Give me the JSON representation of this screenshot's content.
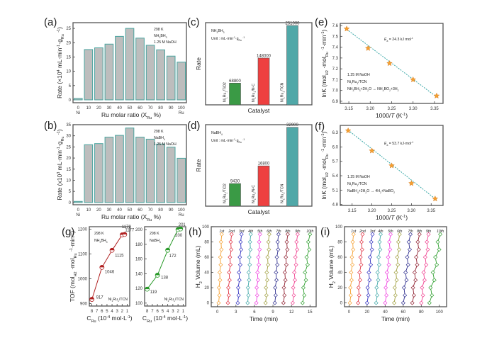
{
  "figure": {
    "panel_labels": [
      "(a)",
      "(b)",
      "(c)",
      "(d)",
      "(e)",
      "(f)",
      "(g)",
      "(h)",
      "(i)"
    ]
  },
  "chart_data": [
    {
      "id": "a",
      "type": "bar",
      "panel_label": "(a)",
      "title": "",
      "categories": [
        "0",
        "10",
        "20",
        "30",
        "40",
        "50",
        "60",
        "70",
        "80",
        "90",
        "100"
      ],
      "category_sublabels": {
        "0": "Ni",
        "100": "Ru"
      },
      "values": [
        0.5,
        17.6,
        18.2,
        19.5,
        22.2,
        25.0,
        21.6,
        19.1,
        17.5,
        15.3,
        13.2
      ],
      "xlabel": "Ru  molar ratio (X_Ru %)",
      "ylabel": "Rate (×10^4 mL·min^-1·g_Ru^-1)",
      "ylim": [
        -1,
        27
      ],
      "yticks": [
        0,
        5,
        10,
        15,
        20,
        25
      ],
      "annotations": [
        "298 K",
        "NH3BH3",
        "1.25 M NaOH"
      ],
      "colors": {
        "fill": "#bdbdbd",
        "edge": "#4aa5a0"
      }
    },
    {
      "id": "b",
      "type": "bar",
      "panel_label": "(b)",
      "title": "",
      "categories": [
        "0",
        "10",
        "20",
        "30",
        "40",
        "50",
        "60",
        "70",
        "80",
        "90",
        "100"
      ],
      "category_sublabels": {
        "0": "Ni",
        "100": "Ru"
      },
      "values": [
        0.5,
        26.0,
        26.5,
        29.4,
        30.2,
        33.5,
        29.4,
        28.5,
        26.3,
        24.9,
        19.9
      ],
      "xlabel": "Ru molar ratio (X_Ru %)",
      "ylabel": "Rate (x10^3 mL·min^-1·g_Ru^-1)",
      "ylim": [
        -1,
        35
      ],
      "yticks": [
        0,
        5,
        10,
        15,
        20,
        25,
        30,
        35
      ],
      "annotations": [
        "298 K",
        "NaBH4",
        "1.25 M NaOH"
      ],
      "colors": {
        "fill": "#bdbdbd",
        "edge": "#4aa5a0"
      }
    },
    {
      "id": "c",
      "type": "bar",
      "panel_label": "(c)",
      "categories": [
        "Ni1Ru1/TiO2",
        "Ni1Ru1/N-C",
        "Ni1Ru1/TCN"
      ],
      "values": [
        68800,
        148000,
        251000
      ],
      "data_labels": [
        "68800",
        "148000",
        "251000"
      ],
      "xlabel": "Catalyst",
      "ylabel": "Rate",
      "ylim": [
        0,
        260000
      ],
      "annotations": [
        "NH3BH3",
        "Unit : mL·min^-1·g_Ru^-1"
      ],
      "colors": [
        "#3a9a45",
        "#ee4040",
        "#50a8a8"
      ]
    },
    {
      "id": "d",
      "type": "bar",
      "panel_label": "(d)",
      "categories": [
        "Ni1Ru1/TiO2",
        "Ni1Ru1/N-C",
        "Ni1Ru1/TCN"
      ],
      "values": [
        9430,
        16800,
        32900
      ],
      "data_labels": [
        "9430",
        "16800",
        "32900"
      ],
      "xlabel": "Catalyst",
      "ylabel": "Rate",
      "ylim": [
        0,
        34000
      ],
      "annotations": [
        "NaBH4",
        "Unit : mL·min^-1·g_Ru^-1"
      ],
      "colors": [
        "#3a9a45",
        "#ee4040",
        "#50a8a8"
      ]
    },
    {
      "id": "e",
      "type": "scatter",
      "panel_label": "(e)",
      "x": [
        3.145,
        3.195,
        3.245,
        3.3,
        3.355
      ],
      "y": [
        7.57,
        7.39,
        7.25,
        7.1,
        6.95
      ],
      "fit": {
        "x": [
          3.145,
          3.355
        ],
        "y": [
          7.565,
          6.94
        ]
      },
      "xlabel": "1000/T (K^-1)",
      "ylabel": "lnK (mol_H2·mol_Ru^-1·min^-1)",
      "xlim": [
        3.13,
        3.37
      ],
      "ylim": [
        6.88,
        7.62
      ],
      "xticks": [
        3.15,
        3.2,
        3.25,
        3.3,
        3.35
      ],
      "yticks": [
        6.9,
        7.0,
        7.1,
        7.2,
        7.3,
        7.4,
        7.5,
        7.6
      ],
      "annotations": [
        "Ea = 24.3 kJ mol^-1",
        "1.25 M NaOH",
        "Ni1Ru1/TCN",
        "NH3BH3+2H2O → NH4BO2+3H2"
      ],
      "colors": {
        "marker": "#f5a030",
        "line": "#3aa8a8"
      }
    },
    {
      "id": "f",
      "type": "scatter",
      "panel_label": "(f)",
      "x": [
        3.14,
        3.2,
        3.25,
        3.3,
        3.36
      ],
      "y": [
        6.34,
        5.92,
        5.61,
        5.24,
        4.92
      ],
      "fit": {
        "x": [
          3.14,
          3.36
        ],
        "y": [
          6.35,
          4.92
        ]
      },
      "xlabel": "1000/T (K^-1)",
      "ylabel": "lnK (mol_H2·mol_Ru^-1·min^-1)",
      "xlim": [
        3.12,
        3.38
      ],
      "ylim": [
        4.78,
        6.45
      ],
      "xticks": [
        3.15,
        3.2,
        3.25,
        3.3,
        3.35
      ],
      "yticks": [
        4.8,
        5.1,
        5.4,
        5.7,
        6.0,
        6.3
      ],
      "annotations": [
        "Ea = 53.7 kJ·mol^-1",
        "1.25 M NaOH",
        "Ni1Ru1/TCN",
        "NaBH4+2H2O → 4H2+NaBO2"
      ],
      "colors": {
        "marker": "#f5a030",
        "line": "#3aa8a8"
      }
    },
    {
      "id": "g1",
      "type": "line",
      "panel_label": "(g)",
      "x": [
        8,
        6,
        4,
        2,
        1.5
      ],
      "y": [
        917,
        1046,
        1115,
        1177,
        1179
      ],
      "data_labels": [
        "917",
        "1046",
        "1115",
        "1177",
        "1179"
      ],
      "xlabel": "C_Ru (10^-4 mol·L^-1)",
      "ylabel": "TOF (mol_H2·mol_Ru^-1·min^-1)",
      "xlim": [
        8.5,
        0.5
      ],
      "ylim": [
        890,
        1210
      ],
      "xticks": [
        8,
        7,
        6,
        5,
        4,
        3,
        2,
        1
      ],
      "yticks": [
        900,
        1000,
        1100,
        1200
      ],
      "annotations": [
        "298 K",
        "NH3BH3",
        "Ni1Ru1/TCN"
      ],
      "colors": {
        "line": "#b02020"
      }
    },
    {
      "id": "g2",
      "type": "line",
      "panel_label": "",
      "x": [
        8,
        6,
        4,
        2,
        1.5
      ],
      "y": [
        119,
        138,
        172,
        200,
        201
      ],
      "data_labels": [
        "119",
        "138",
        "172",
        "200",
        "201"
      ],
      "xlabel": "C_Ru (10^-4 mol·L^-1)",
      "ylabel": "",
      "xlim": [
        8.5,
        0.5
      ],
      "ylim": [
        96,
        204
      ],
      "xticks": [
        8,
        7,
        6,
        5,
        4,
        3,
        2,
        1
      ],
      "yticks": [
        100,
        120,
        140,
        160,
        180,
        200
      ],
      "annotations": [
        "298 K",
        "NaBH4",
        "Ni1Ru1/TCN"
      ],
      "colors": {
        "line": "#2a9a2a"
      }
    },
    {
      "id": "h",
      "type": "line",
      "panel_label": "(h)",
      "series_labels": [
        "1st",
        "2nd",
        "3rd",
        "4th",
        "5th",
        "6th",
        "7th",
        "8th",
        "9th",
        "10th"
      ],
      "series_start_min": [
        0.2,
        1.7,
        3.3,
        4.9,
        6.3,
        7.8,
        9.3,
        10.7,
        12.2,
        13.8
      ],
      "series_end_min": [
        0.7,
        2.3,
        3.9,
        5.4,
        6.9,
        8.4,
        9.9,
        11.4,
        13.0,
        15.0
      ],
      "y_points": [
        0,
        10,
        20,
        30,
        40,
        50,
        60,
        70,
        80,
        90
      ],
      "xlabel": "Time (min)",
      "ylabel": "H2 Volume (mL)",
      "xlim": [
        -1,
        16
      ],
      "ylim": [
        -5,
        100
      ],
      "xticks": [
        0,
        3,
        6,
        9,
        12,
        15
      ],
      "yticks": [
        0,
        20,
        40,
        60,
        80,
        100
      ],
      "colors": [
        "#f5a030",
        "#e03040",
        "#3030c0",
        "#40a8a8",
        "#f040e0",
        "#a0a040",
        "#303090",
        "#902030",
        "#f04090",
        "#30a030"
      ]
    },
    {
      "id": "i",
      "type": "line",
      "panel_label": "(i)",
      "series_labels": [
        "1st",
        "2nd",
        "3rd",
        "4th",
        "5th",
        "6th",
        "7th",
        "8th",
        "9th",
        "10th"
      ],
      "series_start_min": [
        1,
        10,
        20,
        30,
        40,
        50,
        60,
        70,
        80,
        89
      ],
      "series_end_min": [
        5,
        15,
        26,
        35,
        46,
        56,
        68,
        78,
        88,
        101
      ],
      "y_points": [
        0,
        10,
        20,
        30,
        40,
        50,
        60,
        70,
        80,
        90
      ],
      "xlabel": "Time (min)",
      "ylabel": "H2 Volume (mL)",
      "xlim": [
        -5,
        108
      ],
      "ylim": [
        -5,
        100
      ],
      "xticks": [
        0,
        20,
        40,
        60,
        80,
        100
      ],
      "yticks": [
        0,
        20,
        40,
        60,
        80,
        100
      ],
      "colors": [
        "#f5a030",
        "#e03040",
        "#3030c0",
        "#40a8a8",
        "#f040e0",
        "#a0a040",
        "#303090",
        "#902030",
        "#f04090",
        "#30a030"
      ]
    }
  ]
}
